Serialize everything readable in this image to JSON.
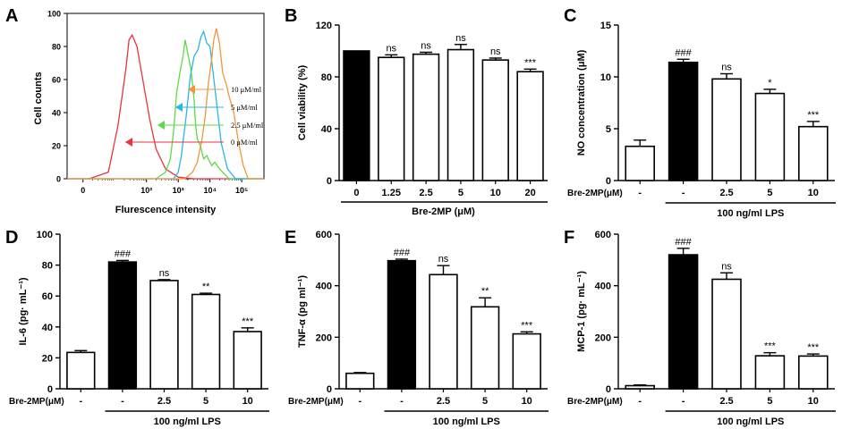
{
  "chart_data": [
    {
      "panel": "A",
      "type": "line",
      "xlabel": "Flurescence intensity",
      "ylabel": "Cell counts",
      "x_scale": "log",
      "xlim": [
        -0.5,
        5.7
      ],
      "ylim": [
        0,
        100
      ],
      "yticks": [
        "0",
        "20",
        "40",
        "60",
        "80",
        "100"
      ],
      "xtick_labels": [
        "0",
        "10²",
        "10³",
        "10⁴",
        "10⁵"
      ],
      "xtick_values": [
        0,
        2,
        3,
        4,
        5
      ],
      "legend": [
        "10 μM/ml",
        "5 μM/ml",
        "2.5 μM/ml",
        "0 μM/ml"
      ],
      "series": [
        {
          "name": "0 μM/ml",
          "color": "#e8343c",
          "x": [
            -0.5,
            0.2,
            0.8,
            1.1,
            1.35,
            1.45,
            1.55,
            1.7,
            1.9,
            2.1,
            2.3,
            2.6,
            3.0,
            3.5,
            5.7
          ],
          "y": [
            0,
            0,
            4,
            32,
            66,
            84,
            87,
            80,
            58,
            36,
            18,
            6,
            1,
            0,
            0
          ]
        },
        {
          "name": "2.5 μM/ml",
          "color": "#5ed94a",
          "x": [
            -0.5,
            2.3,
            2.6,
            2.75,
            2.85,
            2.95,
            3.05,
            3.15,
            3.22,
            3.3,
            3.4,
            3.5,
            3.55,
            3.6,
            3.7,
            3.8,
            3.9,
            4.05,
            4.15,
            4.3,
            4.6,
            5.7
          ],
          "y": [
            0,
            0,
            4,
            12,
            28,
            52,
            64,
            74,
            84,
            76,
            66,
            48,
            32,
            24,
            20,
            12,
            14,
            8,
            10,
            6,
            0,
            0
          ]
        },
        {
          "name": "5 μM/ml",
          "color": "#2ab6e8",
          "x": [
            -0.5,
            2.85,
            3.0,
            3.1,
            3.25,
            3.38,
            3.5,
            3.62,
            3.72,
            3.8,
            3.9,
            4.0,
            4.1,
            4.22,
            4.35,
            4.55,
            4.8,
            5.7
          ],
          "y": [
            0,
            0,
            4,
            14,
            38,
            62,
            74,
            78,
            86,
            89,
            82,
            80,
            64,
            44,
            22,
            6,
            0,
            0
          ]
        },
        {
          "name": "10 μM/ml",
          "color": "#f2953c",
          "x": [
            -0.5,
            3.2,
            3.45,
            3.6,
            3.75,
            3.85,
            3.95,
            4.05,
            4.12,
            4.2,
            4.3,
            4.4,
            4.5,
            4.6,
            4.75,
            4.9,
            5.05,
            5.2,
            5.7
          ],
          "y": [
            0,
            0,
            4,
            10,
            24,
            38,
            58,
            72,
            84,
            91,
            82,
            64,
            58,
            50,
            40,
            22,
            8,
            0,
            0
          ]
        }
      ]
    },
    {
      "panel": "B",
      "type": "bar",
      "ylabel": "Cell viability (%)",
      "xlabel": "Bre-2MP (μM)",
      "ylim": [
        0,
        120
      ],
      "yticks": [
        "0",
        "40",
        "80",
        "120"
      ],
      "categories": [
        "0",
        "1.25",
        "2.5",
        "5",
        "10",
        "20"
      ],
      "values": [
        100,
        95,
        97.5,
        101,
        93,
        84
      ],
      "errors": [
        0,
        2,
        1.5,
        4,
        1.5,
        2
      ],
      "fills": [
        "black",
        "white",
        "white",
        "white",
        "white",
        "white"
      ],
      "annotations": [
        "",
        "ns",
        "ns",
        "ns",
        "ns",
        "***"
      ]
    },
    {
      "panel": "C",
      "type": "bar",
      "ylabel": "NO concentration (μM)",
      "ylim": [
        0,
        15
      ],
      "yticks": [
        "0",
        "5",
        "10",
        "15"
      ],
      "treatment_label": "Bre-2MP(μM)",
      "categories": [
        "-",
        "-",
        "2.5",
        "5",
        "10"
      ],
      "values": [
        3.3,
        11.4,
        9.8,
        8.4,
        5.2
      ],
      "errors": [
        0.6,
        0.3,
        0.5,
        0.4,
        0.5
      ],
      "fills": [
        "white",
        "black",
        "white",
        "white",
        "white"
      ],
      "annotations": [
        "",
        "###",
        "ns",
        "*",
        "***"
      ],
      "lps_label": "100 ng/ml LPS"
    },
    {
      "panel": "D",
      "type": "bar",
      "ylabel": "IL-6 (pg· mL⁻¹)",
      "ylim": [
        0,
        100
      ],
      "yticks": [
        "0",
        "20",
        "40",
        "60",
        "80",
        "100"
      ],
      "treatment_label": "Bre-2MP(μM)",
      "categories": [
        "-",
        "-",
        "2.5",
        "5",
        "10"
      ],
      "values": [
        23.5,
        82,
        70,
        61,
        37
      ],
      "errors": [
        1.2,
        1,
        0.6,
        0.8,
        2.4
      ],
      "fills": [
        "white",
        "black",
        "white",
        "white",
        "white"
      ],
      "annotations": [
        "",
        "###",
        "ns",
        "**",
        "***"
      ],
      "lps_label": "100 ng/ml LPS"
    },
    {
      "panel": "E",
      "type": "bar",
      "ylabel": "TNF-α (pg ml⁻¹)",
      "ylim": [
        0,
        600
      ],
      "yticks": [
        "0",
        "200",
        "400",
        "600"
      ],
      "treatment_label": "Bre-2MP(μM)",
      "categories": [
        "-",
        "-",
        "2.5",
        "5",
        "10"
      ],
      "values": [
        60,
        497,
        443,
        318,
        213
      ],
      "errors": [
        3,
        6,
        35,
        35,
        8
      ],
      "fills": [
        "white",
        "black",
        "white",
        "white",
        "white"
      ],
      "annotations": [
        "",
        "###",
        "ns",
        "**",
        "***"
      ],
      "lps_label": "100 ng/ml LPS"
    },
    {
      "panel": "F",
      "type": "bar",
      "ylabel": "MCP-1 (pg· mL⁻¹)",
      "ylim": [
        0,
        600
      ],
      "yticks": [
        "0",
        "200",
        "400",
        "600"
      ],
      "treatment_label": "Bre-2MP(μM)",
      "categories": [
        "-",
        "-",
        "2.5",
        "5",
        "10"
      ],
      "values": [
        12,
        520,
        425,
        128,
        127
      ],
      "errors": [
        3,
        25,
        25,
        12,
        8
      ],
      "fills": [
        "white",
        "black",
        "white",
        "white",
        "white"
      ],
      "annotations": [
        "",
        "###",
        "ns",
        "***",
        "***"
      ],
      "lps_label": "100 ng/ml LPS"
    }
  ]
}
